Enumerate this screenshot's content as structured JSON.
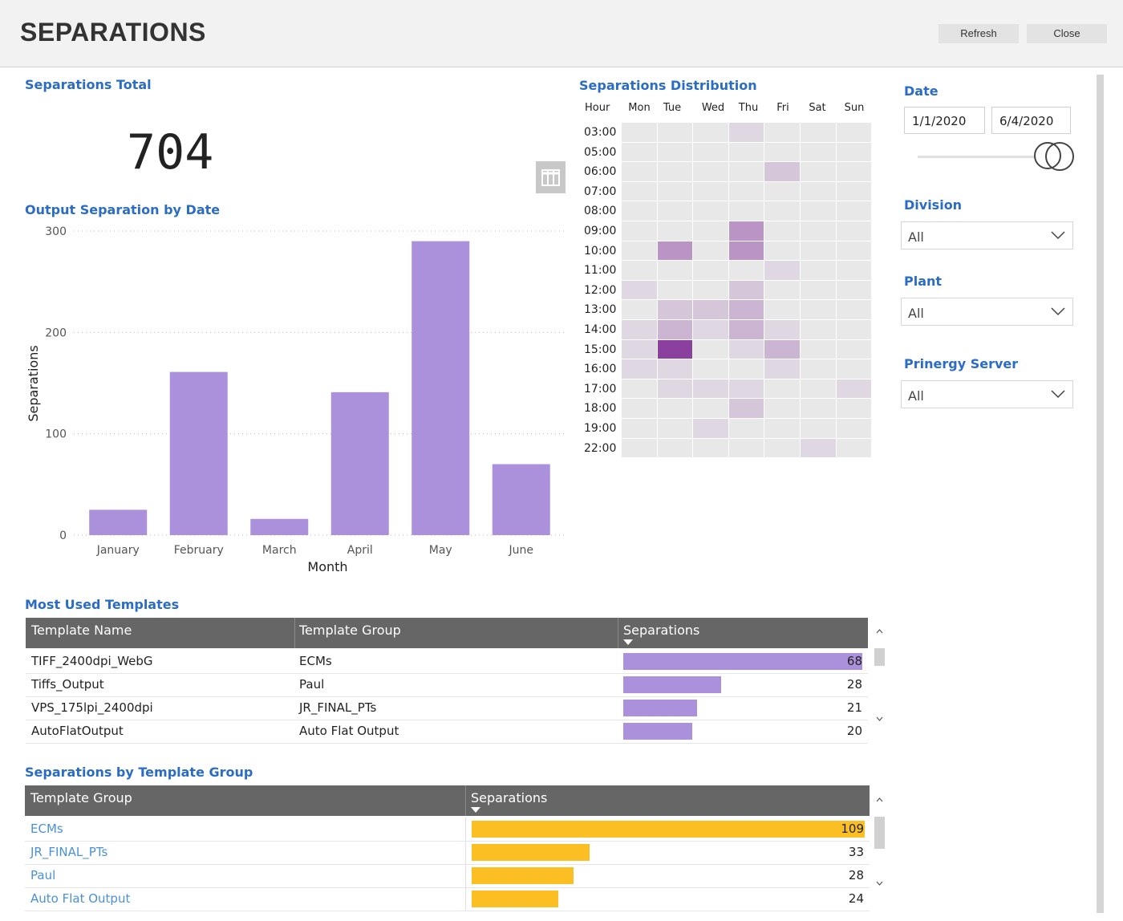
{
  "app": {
    "title": "SEPARATIONS",
    "refresh_label": "Refresh",
    "close_label": "Close"
  },
  "total": {
    "title": "Separations Total",
    "value": "704"
  },
  "chart_data": {
    "type": "bar",
    "title": "Output Separation by Date",
    "xlabel": "Month",
    "ylabel": "Separations",
    "categories": [
      "January",
      "February",
      "March",
      "April",
      "May",
      "June"
    ],
    "values": [
      25,
      161,
      16,
      141,
      290,
      70
    ],
    "yticks": [
      0,
      100,
      200,
      300
    ],
    "ylim": [
      0,
      300
    ],
    "grid": true,
    "color": "#ab91dc"
  },
  "heatmap": {
    "title": "Separations Distribution",
    "hour_header": "Hour",
    "days": [
      "Mon",
      "Tue",
      "Wed",
      "Thu",
      "Fri",
      "Sat",
      "Sun"
    ],
    "hours": [
      "03:00",
      "05:00",
      "06:00",
      "07:00",
      "08:00",
      "09:00",
      "10:00",
      "11:00",
      "12:00",
      "13:00",
      "14:00",
      "15:00",
      "16:00",
      "17:00",
      "18:00",
      "19:00",
      "22:00"
    ],
    "values": [
      [
        0,
        0,
        0,
        1,
        0,
        0,
        0
      ],
      [
        0,
        0,
        0,
        0,
        0,
        0,
        0
      ],
      [
        0,
        0,
        0,
        0,
        2,
        0,
        0
      ],
      [
        0,
        0,
        0,
        0,
        0,
        0,
        0
      ],
      [
        0,
        0,
        0,
        0,
        0,
        0,
        0
      ],
      [
        0,
        0,
        0,
        5,
        0,
        0,
        0
      ],
      [
        0,
        5,
        0,
        5,
        0,
        0,
        0
      ],
      [
        0,
        0,
        0,
        0,
        1,
        0,
        0
      ],
      [
        1,
        0,
        0,
        2,
        0,
        0,
        0
      ],
      [
        0,
        2,
        2,
        3,
        0,
        0,
        0
      ],
      [
        1,
        3,
        1,
        3,
        1,
        0,
        0
      ],
      [
        1,
        10,
        0,
        1,
        3,
        0,
        0
      ],
      [
        1,
        1,
        0,
        0,
        1,
        0,
        0
      ],
      [
        0,
        1,
        1,
        1,
        0,
        0,
        1
      ],
      [
        0,
        0,
        0,
        2,
        0,
        0,
        0
      ],
      [
        0,
        0,
        1,
        0,
        0,
        0,
        0
      ],
      [
        0,
        0,
        0,
        0,
        0,
        1,
        0
      ]
    ],
    "colors": {
      "low": "#e8e8e8",
      "high": "#8b3f9f"
    }
  },
  "filters": {
    "date_title": "Date",
    "date_from": "1/1/2020",
    "date_to": "6/4/2020",
    "division_title": "Division",
    "division_value": "All",
    "plant_title": "Plant",
    "plant_value": "All",
    "server_title": "Prinergy Server",
    "server_value": "All"
  },
  "templates": {
    "title": "Most Used Templates",
    "headers": [
      "Template Name",
      "Template Group",
      "Separations"
    ],
    "max": 68,
    "bar_color": "#ab91dc",
    "rows": [
      {
        "name": "TIFF_2400dpi_WebG",
        "group": "ECMs",
        "value": "68",
        "fraction": 1.0
      },
      {
        "name": "Tiffs_Output",
        "group": "Paul",
        "value": "28",
        "fraction": 0.41
      },
      {
        "name": "VPS_175lpi_2400dpi",
        "group": "JR_FINAL_PTs",
        "value": "21",
        "fraction": 0.31
      },
      {
        "name": "AutoFlatOutput",
        "group": "Auto Flat Output",
        "value": "20",
        "fraction": 0.29
      }
    ]
  },
  "groups": {
    "title": "Separations by Template Group",
    "headers": [
      "Template Group",
      "Separations"
    ],
    "max": 109,
    "bar_color": "#fbbf24",
    "rows": [
      {
        "name": "ECMs",
        "value": "109",
        "fraction": 1.0
      },
      {
        "name": "JR_FINAL_PTs",
        "value": "33",
        "fraction": 0.3
      },
      {
        "name": "Paul",
        "value": "28",
        "fraction": 0.26
      },
      {
        "name": "Auto Flat Output",
        "value": "24",
        "fraction": 0.22
      }
    ]
  }
}
